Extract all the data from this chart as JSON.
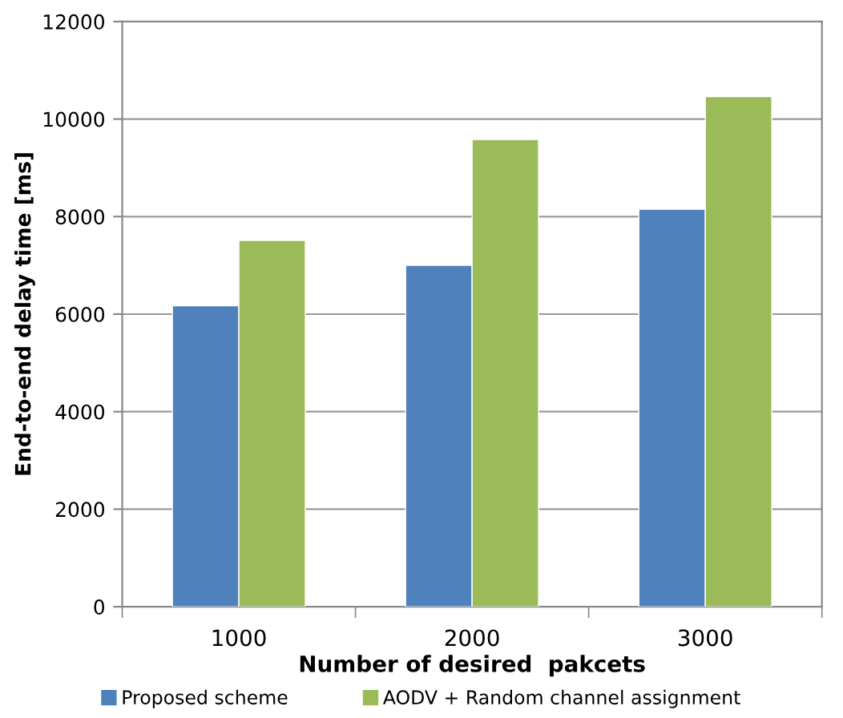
{
  "chart_data": {
    "type": "bar",
    "xlabel": "Number of desired  pakcets",
    "ylabel": "End-to-end delay time [ms]",
    "categories": [
      "1000",
      "2000",
      "3000"
    ],
    "series": [
      {
        "name": "Proposed scheme",
        "color": "#4f81bd",
        "values": [
          6170,
          7000,
          8150
        ]
      },
      {
        "name": "AODV + Random channel assignment",
        "color": "#9bbb59",
        "values": [
          7510,
          9580,
          10460
        ]
      }
    ],
    "ylim": [
      0,
      12000
    ],
    "yticks": [
      0,
      2000,
      4000,
      6000,
      8000,
      10000,
      12000
    ],
    "grid": "y",
    "legend": "bottom"
  }
}
